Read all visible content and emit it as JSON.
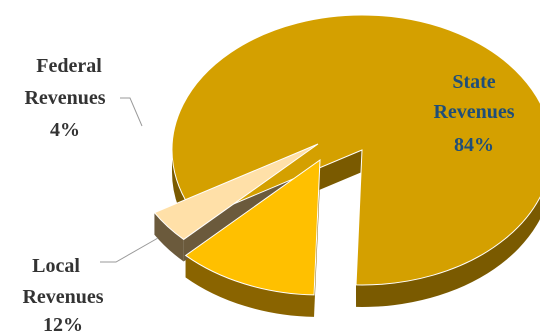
{
  "chart_data": {
    "type": "pie",
    "style": "3d-exploded",
    "slices": [
      {
        "name": "State Revenues",
        "value": 84,
        "pct_label": "84%",
        "color": "#D4A000",
        "side_color": "#7A5A00",
        "label_color": "#1F4E79"
      },
      {
        "name": "Local Revenues",
        "value": 12,
        "pct_label": "12%",
        "color": "#FFC000",
        "side_color": "#8A6400",
        "label_color": "#333333"
      },
      {
        "name": "Federal Revenues",
        "value": 4,
        "pct_label": "4%",
        "color": "#FFE0A8",
        "side_color": "#6B5A3C",
        "label_color": "#333333"
      }
    ]
  },
  "labels": {
    "state": {
      "line1": "State",
      "line2": "Revenues",
      "pct": "84%"
    },
    "local": {
      "line1": "Local",
      "line2": "Revenues",
      "pct": "12%"
    },
    "federal": {
      "line1": "Federal",
      "line2": "Revenues",
      "pct": "4%"
    }
  }
}
